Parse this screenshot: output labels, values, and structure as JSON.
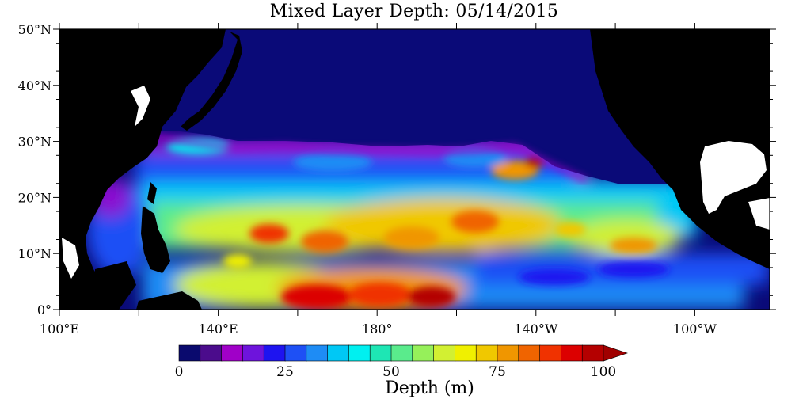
{
  "title": "Mixed Layer Depth: 05/14/2015",
  "map": {
    "lat_ticks": [
      "0°",
      "10°N",
      "20°N",
      "30°N",
      "40°N",
      "50°N"
    ],
    "lon_ticks": [
      "100°E",
      "140°E",
      "180°",
      "140°W",
      "100°W"
    ],
    "region": "North Pacific",
    "variable": "Mixed Layer Depth",
    "units": "m",
    "land_color": "#000000",
    "shallow_color": "#0a0a78",
    "deep_color": "#a00000"
  },
  "colorbar": {
    "title": "Depth (m)",
    "tick_labels": [
      "0",
      "25",
      "50",
      "75",
      "100"
    ],
    "colors": [
      "#0a0a6e",
      "#4b0c8c",
      "#a000c8",
      "#6e14dc",
      "#1e14f0",
      "#1e50f5",
      "#1e8cf5",
      "#00c8f5",
      "#00f0f0",
      "#1ee6b4",
      "#5aeb8c",
      "#96f05a",
      "#d2f032",
      "#f0f000",
      "#f0c800",
      "#f09600",
      "#f06400",
      "#f03200",
      "#dc0000",
      "#b40000"
    ],
    "extend_color": "#a00000"
  }
}
